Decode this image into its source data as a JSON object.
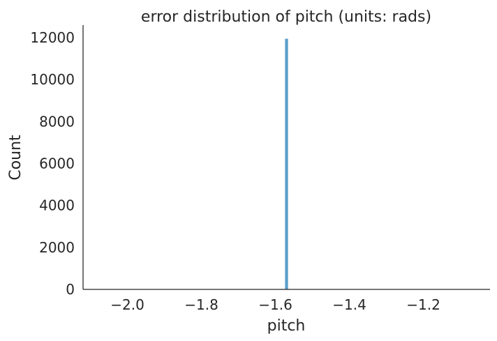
{
  "chart_data": {
    "type": "bar",
    "title": "error distribution of pitch (units: rads)",
    "xlabel": "pitch",
    "ylabel": "Count",
    "xlim": [
      -2.12,
      -1.02
    ],
    "ylim": [
      0,
      12600
    ],
    "x_ticks": [
      -2.0,
      -1.8,
      -1.6,
      -1.4,
      -1.2
    ],
    "x_tick_labels": [
      "−2.0",
      "−1.8",
      "−1.6",
      "−1.4",
      "−1.2"
    ],
    "y_ticks": [
      0,
      2000,
      4000,
      6000,
      8000,
      10000,
      12000
    ],
    "y_tick_labels": [
      "0",
      "2000",
      "4000",
      "6000",
      "8000",
      "10000",
      "12000"
    ],
    "bars": [
      {
        "x_start": -1.574,
        "x_end": -1.566,
        "count": 11950
      }
    ],
    "bar_color": "#5a9ec9",
    "grid": false
  }
}
